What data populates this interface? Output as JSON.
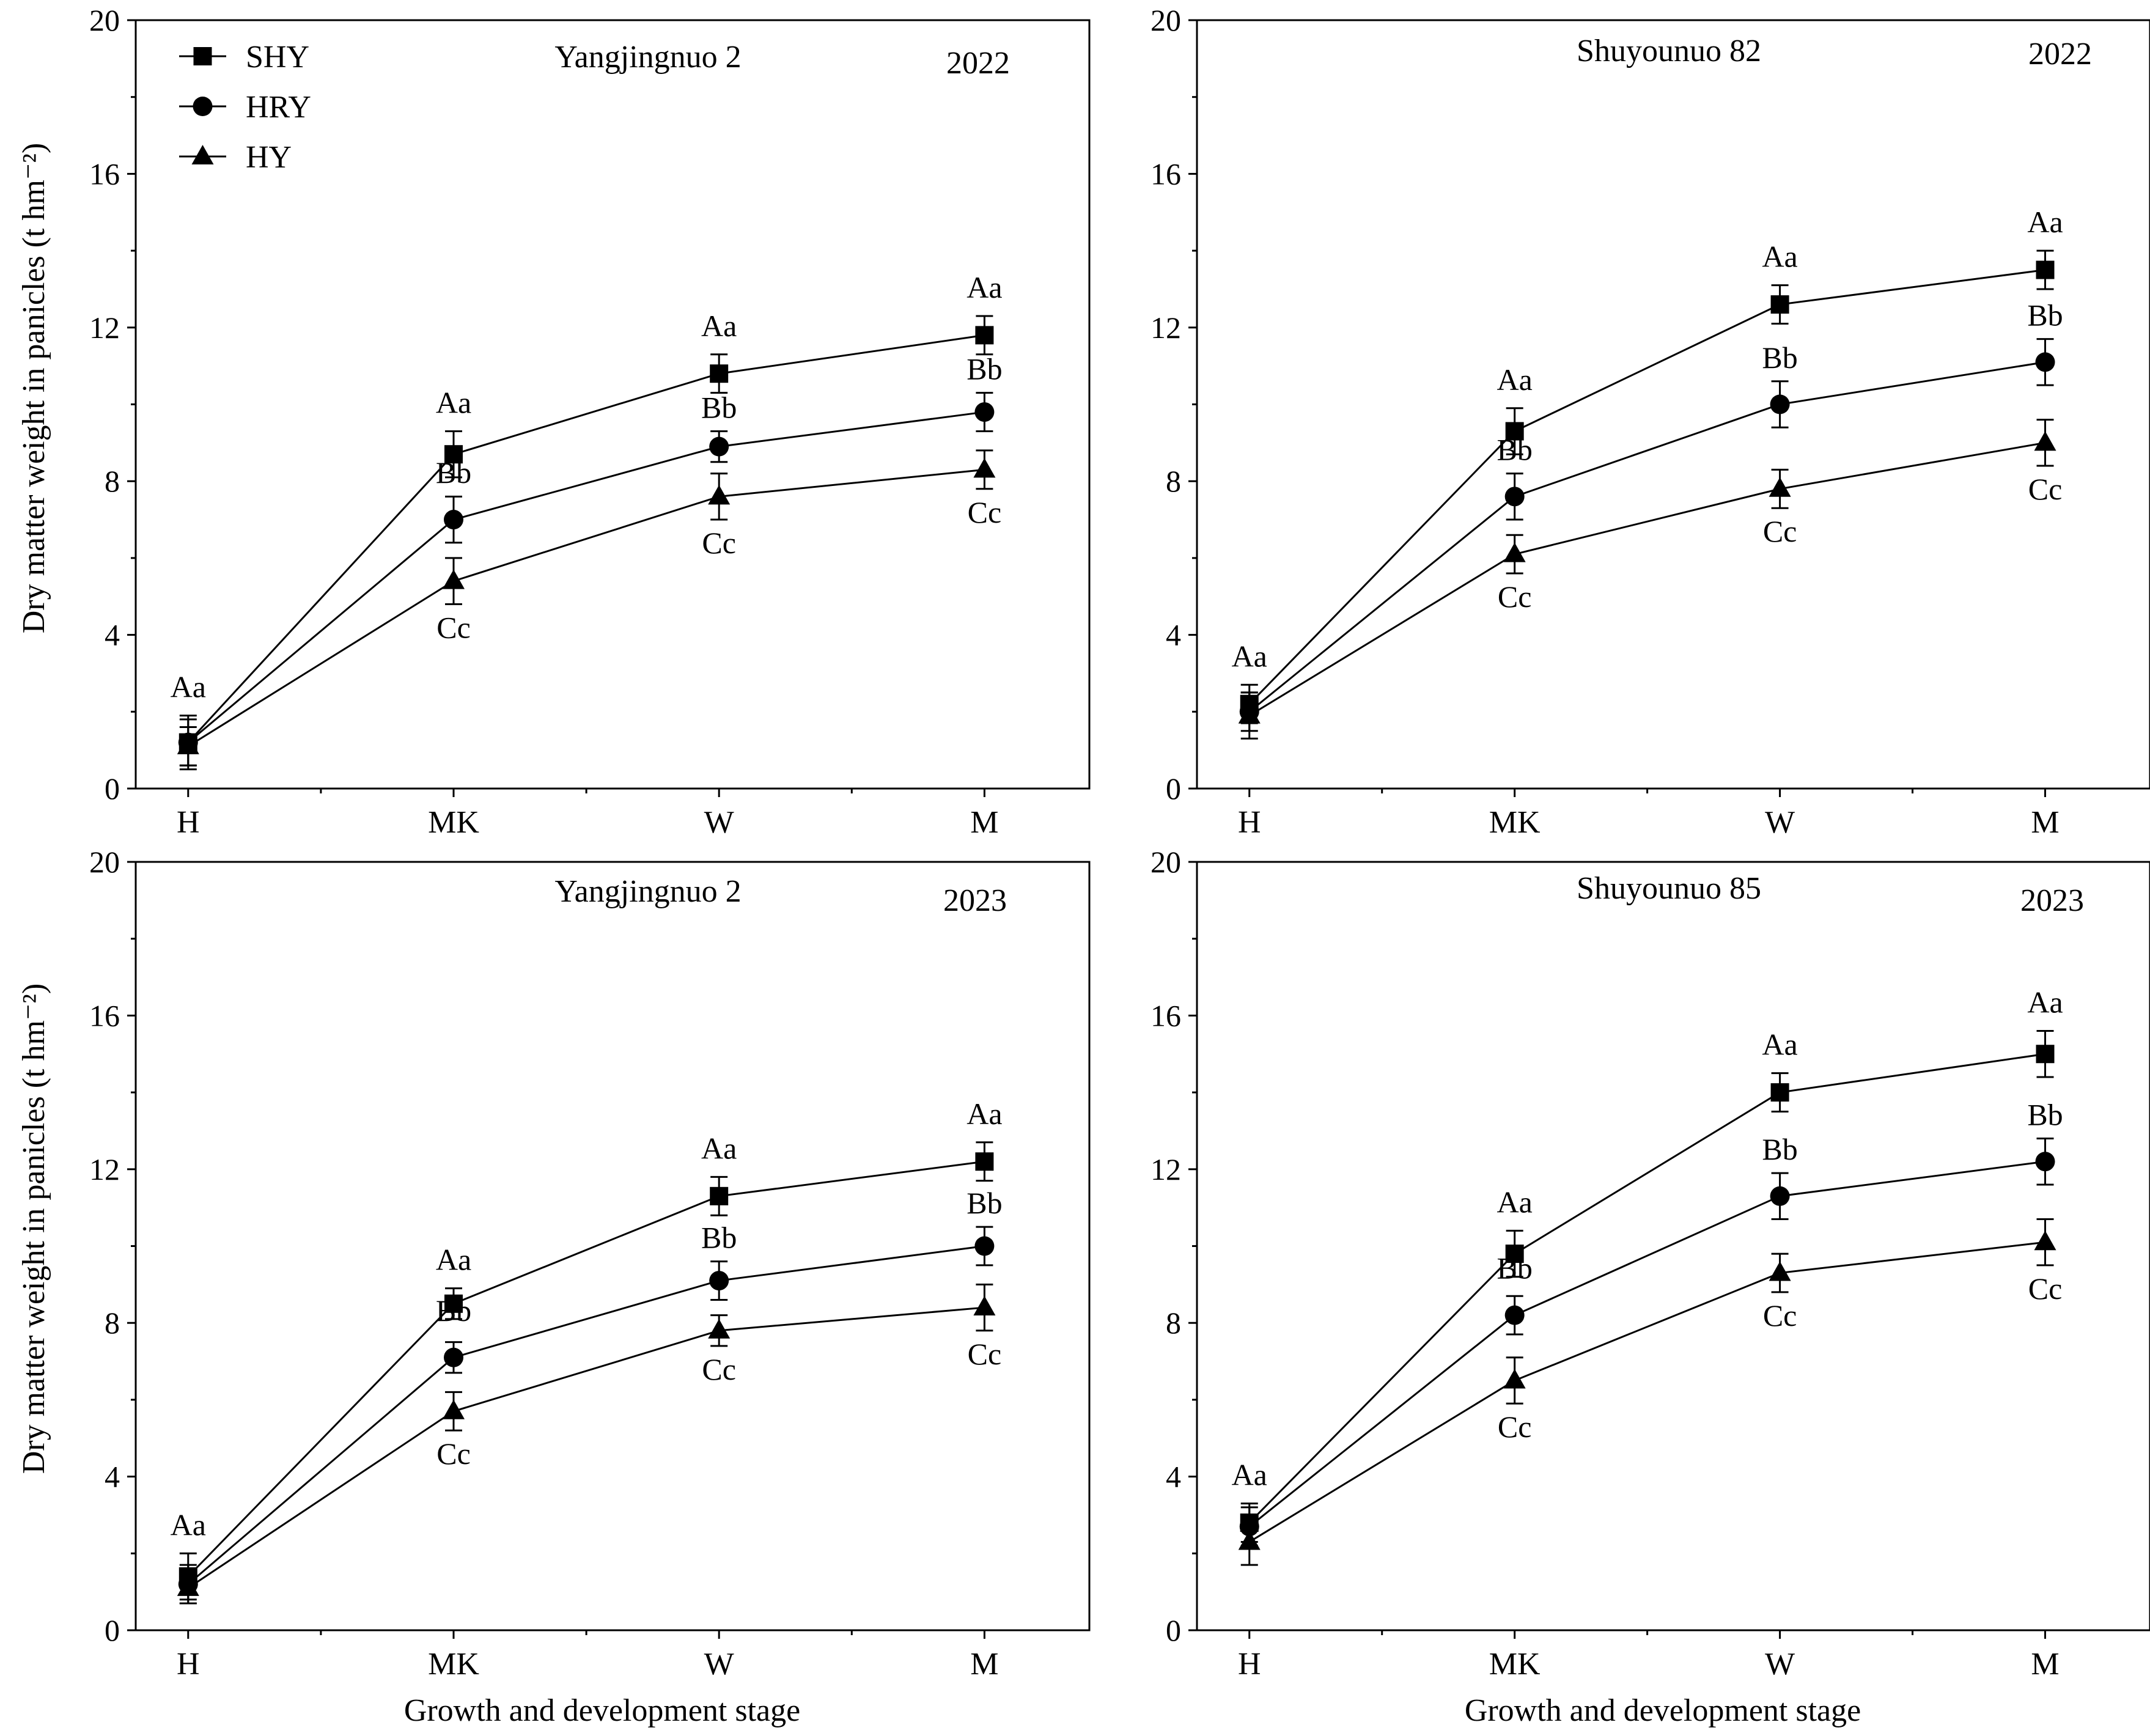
{
  "chart_data": {
    "type": "line",
    "ylabel": "Dry matter weight in panicles (t hm⁻²)",
    "xlabel": "Growth and development stage",
    "categories": [
      "H",
      "MK",
      "W",
      "M"
    ],
    "ylim": [
      0,
      20
    ],
    "yticks": [
      0,
      4,
      8,
      12,
      16,
      20
    ],
    "legend": {
      "placement": "top-left",
      "entries": [
        {
          "name": "SHY",
          "marker": "square"
        },
        {
          "name": "HRY",
          "marker": "circle"
        },
        {
          "name": "HY",
          "marker": "triangle"
        }
      ]
    },
    "grid": false,
    "panels": [
      {
        "title": "Yangjingnuo 2",
        "year": "2022",
        "series": [
          {
            "name": "SHY",
            "values": [
              1.2,
              8.7,
              10.8,
              11.8
            ],
            "errors": [
              0.7,
              0.6,
              0.5,
              0.5
            ],
            "labels": [
              "Aa",
              "Aa",
              "Aa",
              "Aa"
            ]
          },
          {
            "name": "HRY",
            "values": [
              1.2,
              7.0,
              8.9,
              9.8
            ],
            "errors": [
              0.6,
              0.6,
              0.4,
              0.5
            ],
            "labels": [
              "",
              "Bb",
              "Bb",
              "Bb"
            ]
          },
          {
            "name": "HY",
            "values": [
              1.1,
              5.4,
              7.6,
              8.3
            ],
            "errors": [
              0.5,
              0.6,
              0.6,
              0.5
            ],
            "labels": [
              "",
              "Cc",
              "Cc",
              "Cc"
            ]
          }
        ]
      },
      {
        "title": "Shuyounuo 82",
        "year": "2022",
        "series": [
          {
            "name": "SHY",
            "values": [
              2.2,
              9.3,
              12.6,
              13.5
            ],
            "errors": [
              0.5,
              0.6,
              0.5,
              0.5
            ],
            "labels": [
              "Aa",
              "Aa",
              "Aa",
              "Aa"
            ]
          },
          {
            "name": "HRY",
            "values": [
              2.0,
              7.6,
              10.0,
              11.1
            ],
            "errors": [
              0.5,
              0.6,
              0.6,
              0.6
            ],
            "labels": [
              "",
              "Bb",
              "Bb",
              "Bb"
            ]
          },
          {
            "name": "HY",
            "values": [
              1.9,
              6.1,
              7.8,
              9.0
            ],
            "errors": [
              0.6,
              0.5,
              0.5,
              0.6
            ],
            "labels": [
              "",
              "Cc",
              "Cc",
              "Cc"
            ]
          }
        ]
      },
      {
        "title": "Yangjingnuo 2",
        "year": "2023",
        "series": [
          {
            "name": "SHY",
            "values": [
              1.4,
              8.5,
              11.3,
              12.2
            ],
            "errors": [
              0.6,
              0.4,
              0.5,
              0.5
            ],
            "labels": [
              "Aa",
              "Aa",
              "Aa",
              "Aa"
            ]
          },
          {
            "name": "HRY",
            "values": [
              1.2,
              7.1,
              9.1,
              10.0
            ],
            "errors": [
              0.5,
              0.4,
              0.5,
              0.5
            ],
            "labels": [
              "",
              "Bb",
              "Bb",
              "Bb"
            ]
          },
          {
            "name": "HY",
            "values": [
              1.1,
              5.7,
              7.8,
              8.4
            ],
            "errors": [
              0.4,
              0.5,
              0.4,
              0.6
            ],
            "labels": [
              "",
              "Cc",
              "Cc",
              "Cc"
            ]
          }
        ]
      },
      {
        "title": "Shuyounuo 85",
        "year": "2023",
        "series": [
          {
            "name": "SHY",
            "values": [
              2.8,
              9.8,
              14.0,
              15.0
            ],
            "errors": [
              0.5,
              0.6,
              0.5,
              0.6
            ],
            "labels": [
              "Aa",
              "Aa",
              "Aa",
              "Aa"
            ]
          },
          {
            "name": "HRY",
            "values": [
              2.7,
              8.2,
              11.3,
              12.2
            ],
            "errors": [
              0.5,
              0.5,
              0.6,
              0.6
            ],
            "labels": [
              "",
              "Bb",
              "Bb",
              "Bb"
            ]
          },
          {
            "name": "HY",
            "values": [
              2.3,
              6.5,
              9.3,
              10.1
            ],
            "errors": [
              0.6,
              0.6,
              0.5,
              0.6
            ],
            "labels": [
              "",
              "Cc",
              "Cc",
              "Cc"
            ]
          }
        ]
      }
    ]
  }
}
